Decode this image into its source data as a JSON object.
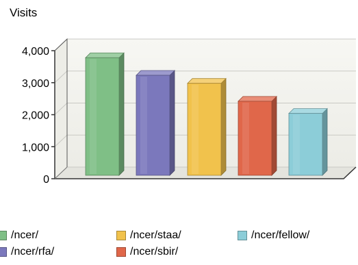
{
  "chart_data": {
    "type": "bar",
    "ylabel": "Visits",
    "categories": [
      "/ncer/",
      "/ncer/rfa/",
      "/ncer/staa/",
      "/ncer/sbir/",
      "/ncer/fellow/"
    ],
    "values": [
      3780,
      3230,
      2980,
      2420,
      2040
    ],
    "ylim": [
      0,
      4000
    ],
    "yticks": [
      0,
      1000,
      2000,
      3000,
      4000
    ],
    "ytick_labels": [
      "0",
      "1,000",
      "2,000",
      "3,000",
      "4,000"
    ],
    "grid": true,
    "legend": "bottom",
    "colors": [
      "#7fbf86",
      "#7b78bc",
      "#f1c24c",
      "#e0674a",
      "#8ccdd8"
    ]
  }
}
